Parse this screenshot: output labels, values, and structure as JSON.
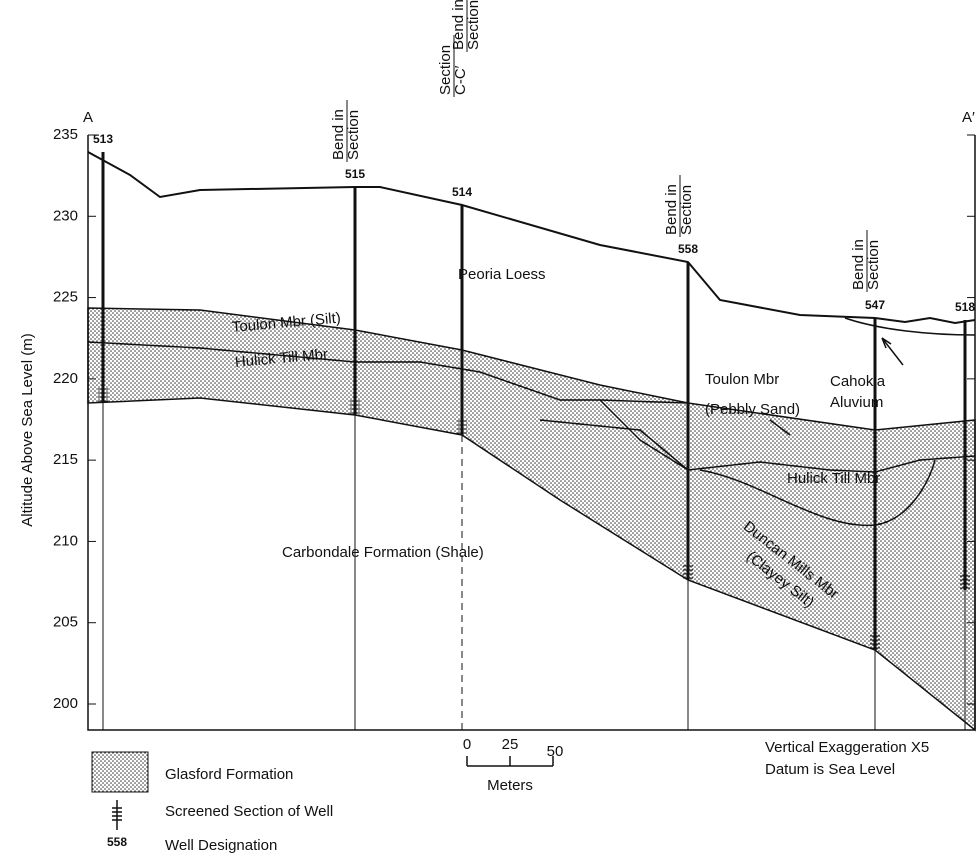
{
  "section_ends": [
    "A",
    "A′"
  ],
  "y_axis": {
    "label": "Altitude Above Sea Level (m)",
    "ticks": [
      235,
      230,
      225,
      220,
      215,
      210,
      205,
      200
    ]
  },
  "wells": [
    "513",
    "515",
    "514",
    "558",
    "547",
    "518"
  ],
  "annotations": [
    {
      "lines": [
        "Bend in",
        "Section"
      ]
    },
    {
      "lines": [
        "Section",
        "C-C′"
      ]
    },
    {
      "lines": [
        "Bend in",
        "Section"
      ]
    },
    {
      "lines": [
        "Bend in",
        "Section"
      ]
    },
    {
      "lines": [
        "Bend in",
        "Section"
      ]
    }
  ],
  "units": [
    "Peoria Loess",
    "Toulon Mbr (Silt)",
    "Hulick Till Mbr",
    "Toulon Mbr",
    "(Pebbly Sand)",
    "Cahokia",
    "Aluvium",
    "Hulick Till Mbr",
    "Duncan Mills Mbr",
    "(Clayey Silt)",
    "Carbondale Formation (Shale)"
  ],
  "legend": {
    "glasford": "Glasford Formation",
    "screened": "Screened Section of Well",
    "well_number": "558",
    "well": "Well Designation"
  },
  "scale": {
    "ticks": [
      "0",
      "25",
      "50"
    ],
    "label": "Meters"
  },
  "notes": [
    "Vertical Exaggeration X5",
    "Datum is Sea Level"
  ]
}
